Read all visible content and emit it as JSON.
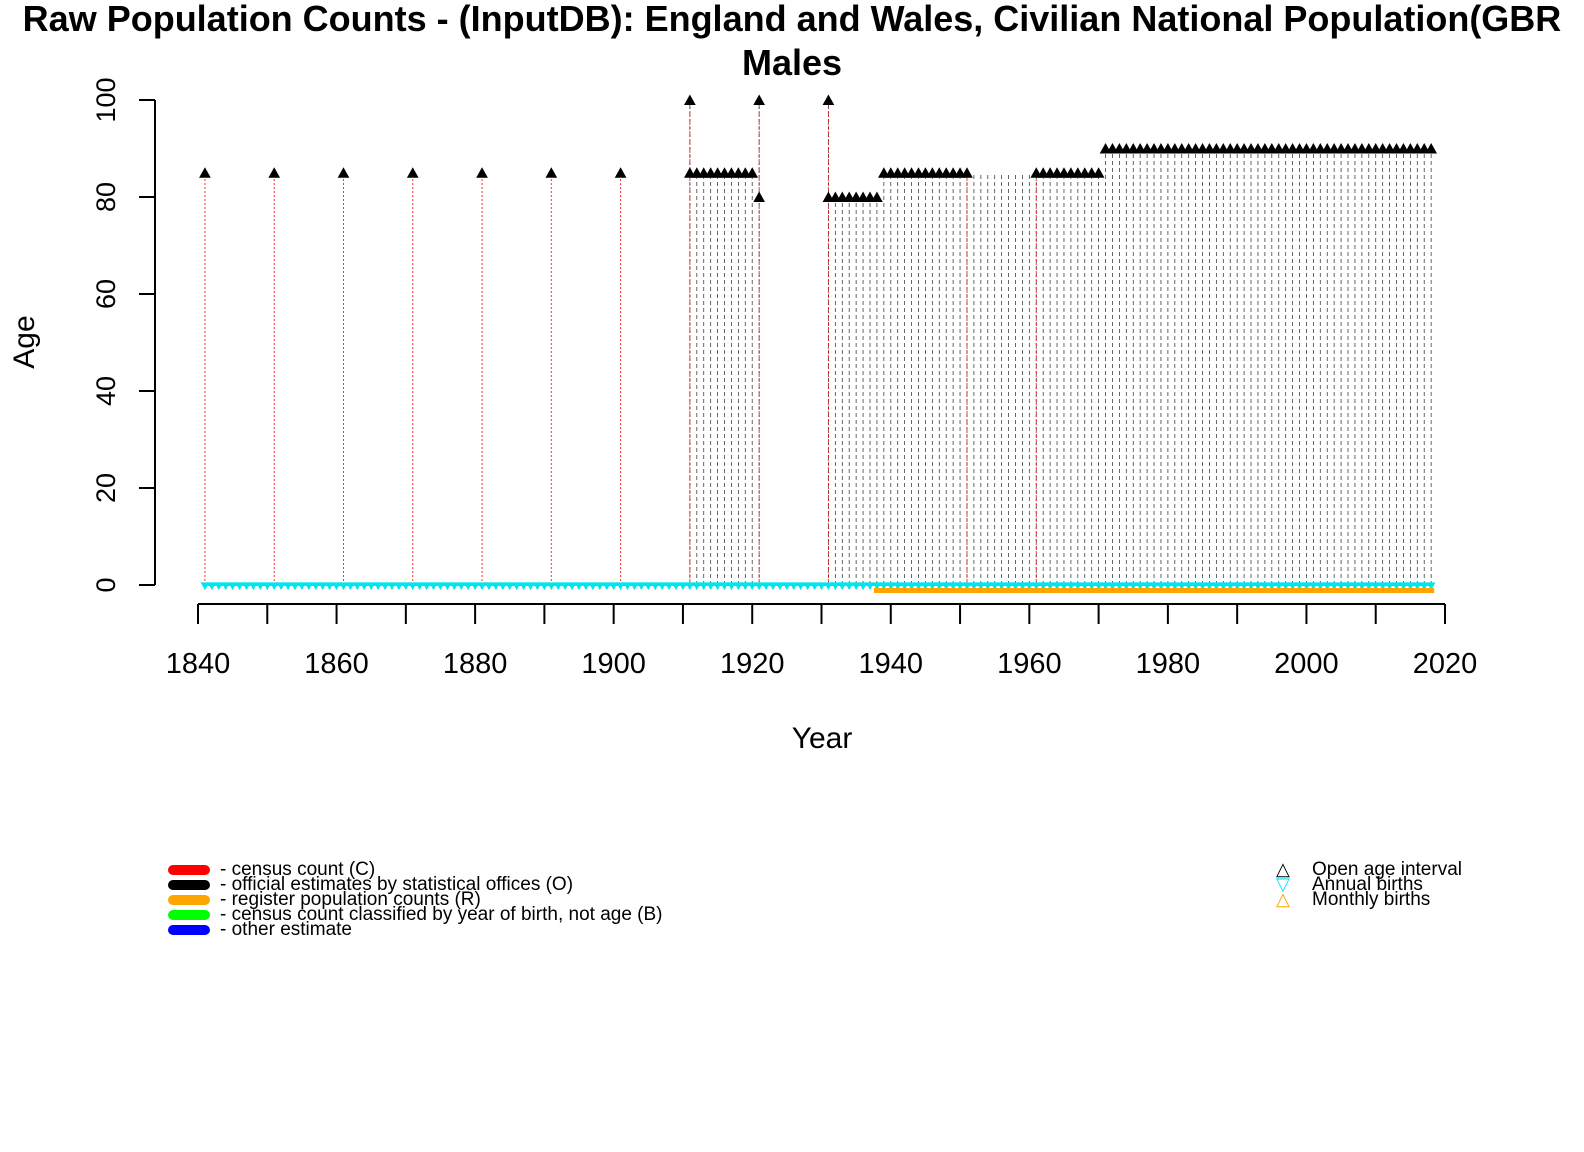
{
  "chart_data": {
    "type": "scatter",
    "title": "Raw Population Counts - (InputDB): England and Wales, Civilian National Population(GBR",
    "subtitle": "Males",
    "xlabel": "Year",
    "ylabel": "Age",
    "xlim": [
      1835,
      2022
    ],
    "ylim": [
      0,
      100
    ],
    "xticks": [
      1840,
      1860,
      1880,
      1900,
      1920,
      1940,
      1960,
      1980,
      2000,
      2020
    ],
    "yticks": [
      0,
      20,
      40,
      60,
      80,
      100
    ],
    "grid": false,
    "series": [
      {
        "name": "census count (C)",
        "color": "#ff0000",
        "years": [
          1841,
          1851,
          1861,
          1871,
          1881,
          1891,
          1901,
          1911,
          1921,
          1931,
          1951,
          1961
        ]
      },
      {
        "name": "official estimates by statistical offices (O)",
        "color": "#000000",
        "years_from": 1911,
        "years_to": 2018,
        "gaps": [
          [
            1922,
            1930
          ]
        ]
      },
      {
        "name": "register population counts (R)",
        "color": "#ffa500",
        "years_from": 1938,
        "years_to": 2018
      },
      {
        "name": "census count classified by year of birth, not age (B)",
        "color": "#00ff00",
        "years": []
      },
      {
        "name": "other estimate",
        "color": "#0000ff",
        "years": []
      }
    ],
    "open_age_points": [
      {
        "x": 1841,
        "y": 85
      },
      {
        "x": 1851,
        "y": 85
      },
      {
        "x": 1861,
        "y": 85
      },
      {
        "x": 1871,
        "y": 85
      },
      {
        "x": 1881,
        "y": 85
      },
      {
        "x": 1891,
        "y": 85
      },
      {
        "x": 1901,
        "y": 85
      },
      {
        "x": 1911,
        "y": 100
      },
      {
        "x": 1921,
        "y": 100
      },
      {
        "x": 1931,
        "y": 100
      },
      {
        "x": 1911,
        "y": 85
      },
      {
        "x": 1912,
        "y": 85
      },
      {
        "x": 1913,
        "y": 85
      },
      {
        "x": 1914,
        "y": 85
      },
      {
        "x": 1915,
        "y": 85
      },
      {
        "x": 1916,
        "y": 85
      },
      {
        "x": 1917,
        "y": 85
      },
      {
        "x": 1918,
        "y": 85
      },
      {
        "x": 1919,
        "y": 85
      },
      {
        "x": 1920,
        "y": 85
      },
      {
        "x": 1921,
        "y": 80
      },
      {
        "x": 1931,
        "y": 80
      },
      {
        "x": 1932,
        "y": 80
      },
      {
        "x": 1933,
        "y": 80
      },
      {
        "x": 1934,
        "y": 80
      },
      {
        "x": 1935,
        "y": 80
      },
      {
        "x": 1936,
        "y": 80
      },
      {
        "x": 1937,
        "y": 80
      },
      {
        "x": 1938,
        "y": 80
      },
      {
        "x": 1939,
        "y": 85
      },
      {
        "x": 1940,
        "y": 85
      },
      {
        "x": 1941,
        "y": 85
      },
      {
        "x": 1942,
        "y": 85
      },
      {
        "x": 1943,
        "y": 85
      },
      {
        "x": 1944,
        "y": 85
      },
      {
        "x": 1945,
        "y": 85
      },
      {
        "x": 1946,
        "y": 85
      },
      {
        "x": 1947,
        "y": 85
      },
      {
        "x": 1948,
        "y": 85
      },
      {
        "x": 1949,
        "y": 85
      },
      {
        "x": 1950,
        "y": 85
      },
      {
        "x": 1951,
        "y": 85
      },
      {
        "x": 1961,
        "y": 85
      },
      {
        "x": 1962,
        "y": 85
      },
      {
        "x": 1963,
        "y": 85
      },
      {
        "x": 1964,
        "y": 85
      },
      {
        "x": 1965,
        "y": 85
      },
      {
        "x": 1966,
        "y": 85
      },
      {
        "x": 1967,
        "y": 85
      },
      {
        "x": 1968,
        "y": 85
      },
      {
        "x": 1969,
        "y": 85
      },
      {
        "x": 1970,
        "y": 85
      },
      {
        "x_from": 1971,
        "x_to": 2018,
        "y": 90
      }
    ],
    "annual_births_years": [
      1841,
      2018
    ],
    "monthly_births_years": [
      1938,
      2018
    ],
    "legend_position": "bottom",
    "legend_symbols": [
      {
        "label": "Open age interval",
        "symbol": "△",
        "color": "#000000"
      },
      {
        "label": "Annual births",
        "symbol": "▽",
        "color": "#00e5ee"
      },
      {
        "label": "Monthly births",
        "symbol": "△",
        "color": "#ffa500"
      }
    ]
  }
}
